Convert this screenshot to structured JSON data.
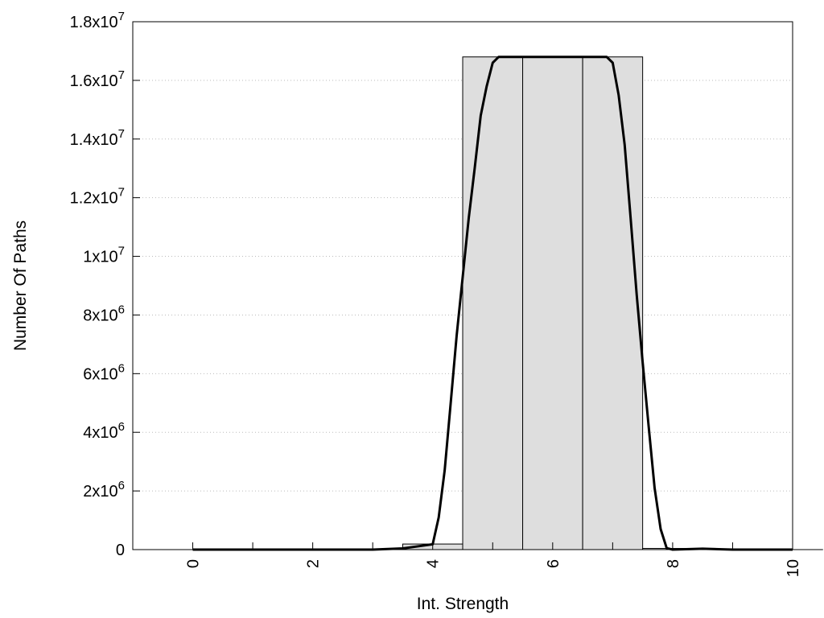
{
  "chart_data": {
    "type": "bar",
    "title": "",
    "xlabel": "Int. Strength",
    "ylabel": "Number Of Paths",
    "xlim": [
      -1,
      10
    ],
    "ylim": [
      0,
      18000000
    ],
    "grid": "horizontal dotted",
    "x_ticks": [
      {
        "value": 0,
        "label": "0"
      },
      {
        "value": 2,
        "label": "2"
      },
      {
        "value": 4,
        "label": "4"
      },
      {
        "value": 6,
        "label": "6"
      },
      {
        "value": 8,
        "label": "8"
      },
      {
        "value": 10,
        "label": "10"
      }
    ],
    "x_minor_ticks": [
      1,
      3,
      5,
      7,
      9
    ],
    "y_ticks": [
      {
        "value": 0,
        "mantissa": "0",
        "exp": ""
      },
      {
        "value": 2000000,
        "mantissa": "2x10",
        "exp": "6"
      },
      {
        "value": 4000000,
        "mantissa": "4x10",
        "exp": "6"
      },
      {
        "value": 6000000,
        "mantissa": "6x10",
        "exp": "6"
      },
      {
        "value": 8000000,
        "mantissa": "8x10",
        "exp": "6"
      },
      {
        "value": 10000000,
        "mantissa": "1x10",
        "exp": "7"
      },
      {
        "value": 12000000,
        "mantissa": "1.2x10",
        "exp": "7"
      },
      {
        "value": 14000000,
        "mantissa": "1.4x10",
        "exp": "7"
      },
      {
        "value": 16000000,
        "mantissa": "1.6x10",
        "exp": "7"
      },
      {
        "value": 18000000,
        "mantissa": "1.8x10",
        "exp": "7"
      }
    ],
    "bars": [
      {
        "x": 0,
        "value": 0
      },
      {
        "x": 1,
        "value": 0
      },
      {
        "x": 2,
        "value": 0
      },
      {
        "x": 3,
        "value": 10000
      },
      {
        "x": 4,
        "value": 190000
      },
      {
        "x": 5,
        "value": 16800000
      },
      {
        "x": 6,
        "value": 16800000
      },
      {
        "x": 7,
        "value": 16800000
      },
      {
        "x": 8,
        "value": 40000
      },
      {
        "x": 9,
        "value": 0
      },
      {
        "x": 10,
        "value": 0
      }
    ],
    "bar_width": 1,
    "curve": [
      [
        0,
        0
      ],
      [
        1,
        0
      ],
      [
        2,
        0
      ],
      [
        3,
        0
      ],
      [
        3.5,
        40000
      ],
      [
        4,
        180000
      ],
      [
        4.1,
        1100000
      ],
      [
        4.2,
        2700000
      ],
      [
        4.3,
        5000000
      ],
      [
        4.4,
        7300000
      ],
      [
        4.5,
        9300000
      ],
      [
        4.6,
        11300000
      ],
      [
        4.7,
        13000000
      ],
      [
        4.8,
        14800000
      ],
      [
        4.9,
        15800000
      ],
      [
        5.0,
        16600000
      ],
      [
        5.1,
        16800000
      ],
      [
        6.0,
        16800000
      ],
      [
        6.9,
        16800000
      ],
      [
        7.0,
        16600000
      ],
      [
        7.1,
        15500000
      ],
      [
        7.2,
        13800000
      ],
      [
        7.3,
        11300000
      ],
      [
        7.4,
        8700000
      ],
      [
        7.5,
        6400000
      ],
      [
        7.6,
        4200000
      ],
      [
        7.7,
        2100000
      ],
      [
        7.8,
        700000
      ],
      [
        7.9,
        50000
      ],
      [
        8.0,
        0
      ],
      [
        8.5,
        30000
      ],
      [
        9,
        0
      ],
      [
        10,
        0
      ]
    ],
    "colors": {
      "bar_fill": "#dedede",
      "bar_stroke": "#000000",
      "curve": "#000000",
      "grid": "#bbbbbb"
    }
  }
}
